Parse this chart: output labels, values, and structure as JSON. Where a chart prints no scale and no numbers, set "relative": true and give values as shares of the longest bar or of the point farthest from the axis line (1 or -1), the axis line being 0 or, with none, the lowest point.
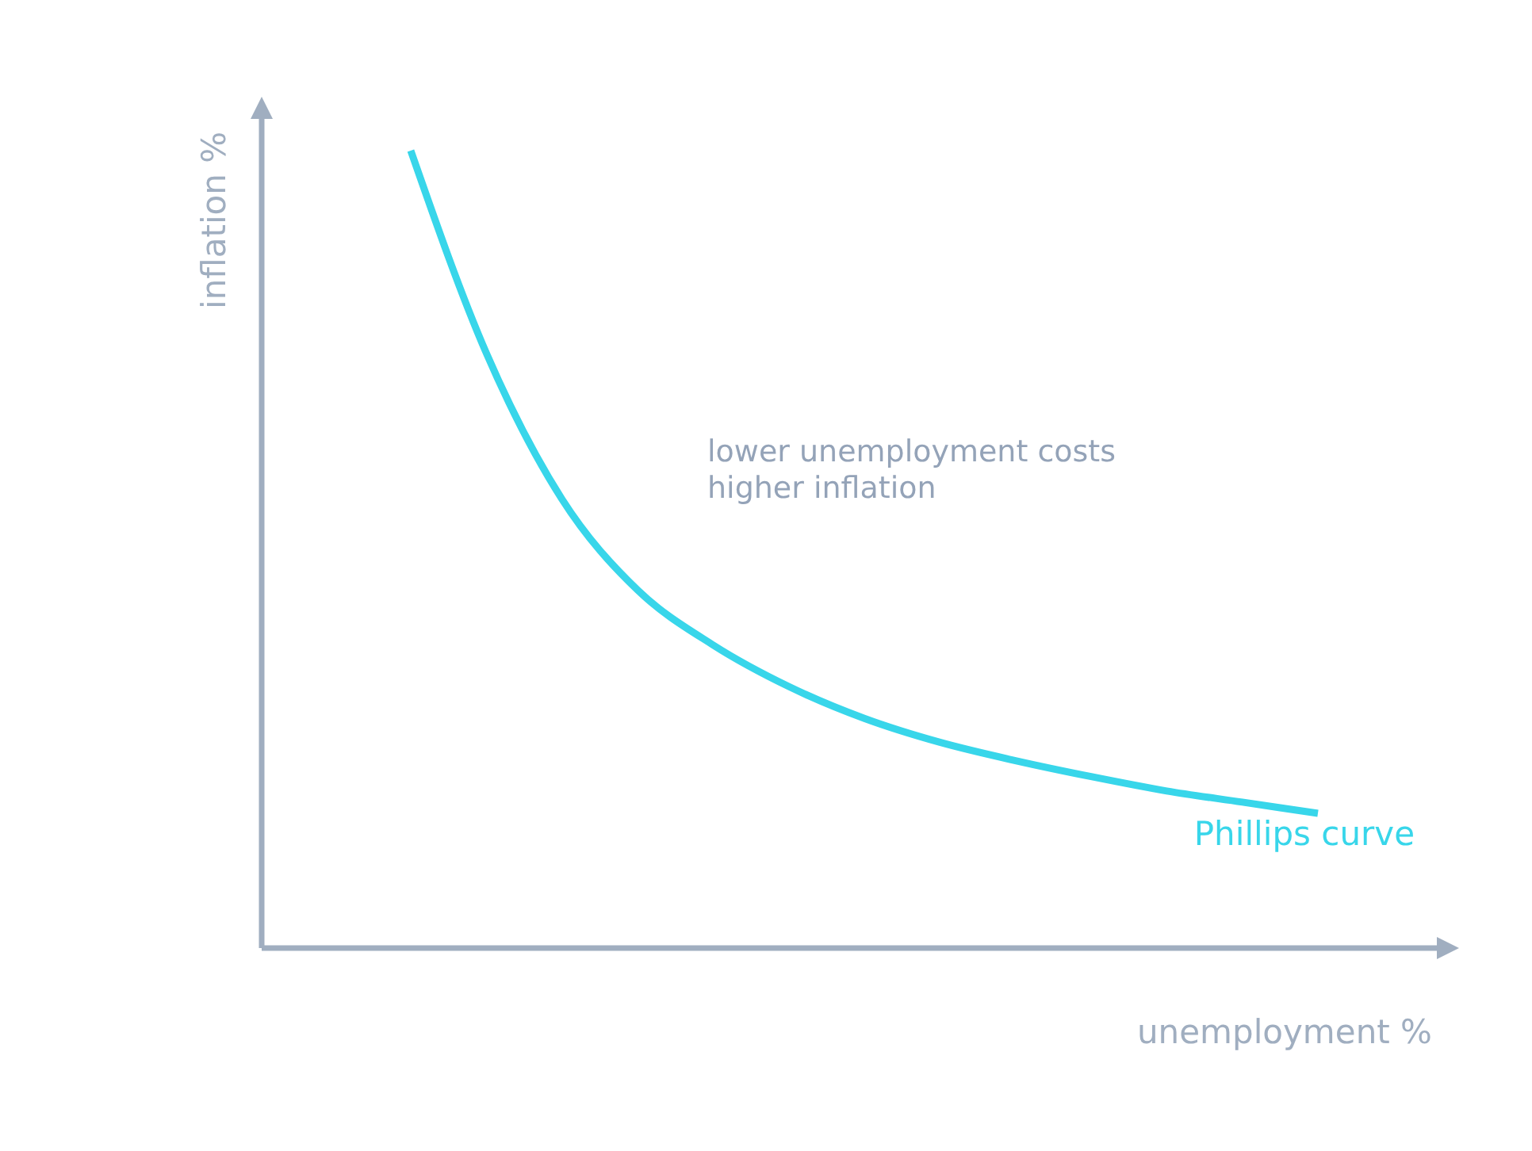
{
  "chart_data": {
    "type": "line",
    "relative": true,
    "xlabel": "unemployment %",
    "ylabel": "inflation %",
    "categories": [
      null,
      null,
      null,
      null,
      null,
      null,
      null,
      null,
      null,
      null,
      null,
      null,
      null
    ],
    "series": [
      {
        "name": "Phillips curve",
        "color": "#38d6ea",
        "values": [
          1,
          0.746,
          0.563,
          0.449,
          0.38,
          0.328,
          0.288,
          0.258,
          0.235,
          0.215,
          0.197,
          0.183,
          0.169
        ]
      }
    ],
    "annotations": [
      "lower unemployment costs higher inflation"
    ],
    "legend": false,
    "marker": "none",
    "line_style": "solid"
  }
}
